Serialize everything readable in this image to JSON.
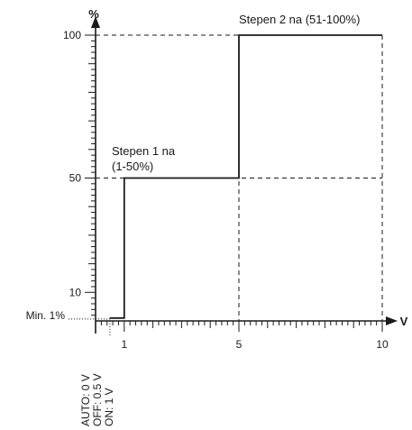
{
  "chart_data": {
    "type": "line",
    "title": "",
    "xlabel": "V",
    "ylabel": "%",
    "xlim": [
      0,
      10
    ],
    "ylim": [
      0,
      100
    ],
    "x_ticks": [
      1,
      5,
      10
    ],
    "y_ticks": [
      10,
      50,
      100
    ],
    "y_tick_labels": [
      "10",
      "50",
      "100"
    ],
    "x_tick_labels": [
      "1",
      "5",
      "10"
    ],
    "grid": "dashed reference lines at V=5, V=10, %=50, %=100",
    "series": [
      {
        "step": "post",
        "x": [
          0.5,
          1,
          1,
          5,
          5,
          10
        ],
        "y": [
          1,
          1,
          50,
          50,
          100,
          100
        ]
      }
    ],
    "min_marker": {
      "label": "Min. 1%",
      "y": 1
    },
    "annotations": [
      {
        "id": "step1",
        "lines": [
          "Stepen 1 na",
          "(1-50%)"
        ]
      },
      {
        "id": "step2",
        "lines": [
          "Stepen 2 na (51-100%)"
        ]
      }
    ],
    "x_mode_labels": [
      "AUTO: 0 V",
      "OFF: 0.5 V",
      "ON: 1 V"
    ],
    "colors": {
      "line": "#1a1a1a",
      "dashed": "#1a1a1a",
      "text": "#1a1a1a"
    }
  }
}
